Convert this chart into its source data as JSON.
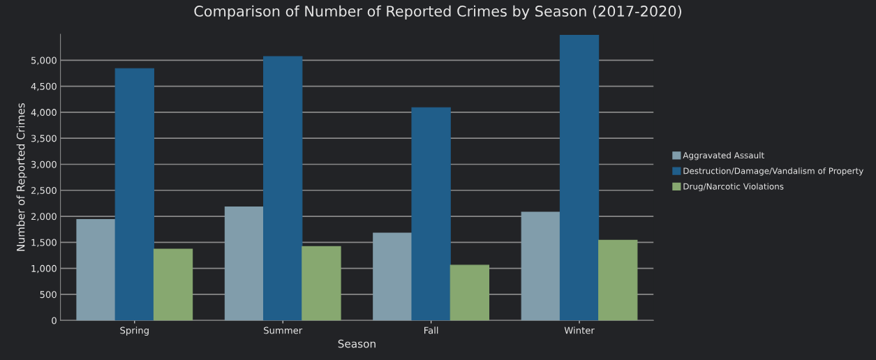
{
  "chart_data": {
    "type": "bar",
    "title": "Comparison of Number of Reported Crimes by Season (2017-2020)",
    "xlabel": "Season",
    "ylabel": "Number of Reported Crimes",
    "categories": [
      "Spring",
      "Summer",
      "Fall",
      "Winter"
    ],
    "series": [
      {
        "name": "Aggravated Assault",
        "color": "#819dab",
        "values": [
          1940,
          2180,
          1680,
          2080
        ]
      },
      {
        "name": "Destruction/Damage/Vandalism of Property",
        "color": "#205e8a",
        "values": [
          4840,
          5070,
          4090,
          5480
        ]
      },
      {
        "name": "Drug/Narcotic Violations",
        "color": "#87a870",
        "values": [
          1370,
          1420,
          1060,
          1540
        ]
      }
    ],
    "ylim": [
      0,
      5500
    ],
    "yticks": [
      {
        "value": 0,
        "label": "0"
      },
      {
        "value": 500,
        "label": "500"
      },
      {
        "value": 1000,
        "label": "1,000"
      },
      {
        "value": 1500,
        "label": "1,500"
      },
      {
        "value": 2000,
        "label": "2,000"
      },
      {
        "value": 2500,
        "label": "2,500"
      },
      {
        "value": 3000,
        "label": "3,000"
      },
      {
        "value": 3500,
        "label": "3,500"
      },
      {
        "value": 4000,
        "label": "4,000"
      },
      {
        "value": 4500,
        "label": "4,500"
      },
      {
        "value": 5000,
        "label": "5,000"
      }
    ],
    "grid": "y",
    "legend": "right"
  }
}
